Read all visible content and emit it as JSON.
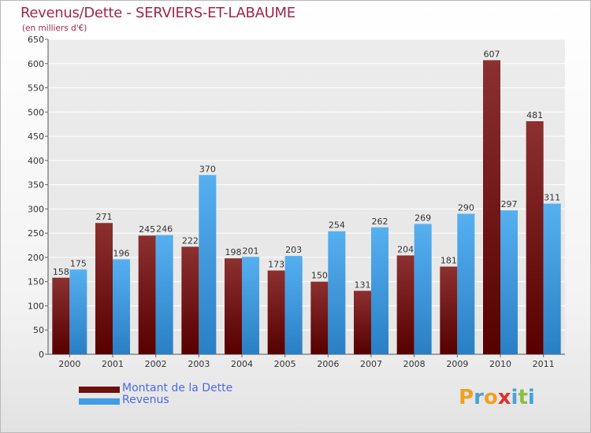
{
  "chart_data": {
    "type": "bar",
    "title": "Revenus/Dette - SERVIERS-ET-LABAUME",
    "subtitle": "(en milliers d'€)",
    "categories": [
      "2000",
      "2001",
      "2002",
      "2003",
      "2004",
      "2005",
      "2006",
      "2007",
      "2008",
      "2009",
      "2010",
      "2011"
    ],
    "series": [
      {
        "name": "Montant de la Dette",
        "color": "#6e0f0f",
        "values": [
          158,
          271,
          245,
          222,
          198,
          173,
          150,
          131,
          204,
          181,
          607,
          481
        ]
      },
      {
        "name": "Revenus",
        "color": "#3f9ee6",
        "values": [
          175,
          196,
          246,
          370,
          201,
          203,
          254,
          262,
          269,
          290,
          297,
          311
        ]
      }
    ],
    "ylim": [
      0,
      650
    ],
    "yticks": [
      0,
      50,
      100,
      150,
      200,
      250,
      300,
      350,
      400,
      450,
      500,
      550,
      600,
      650
    ],
    "grid": true,
    "legend_position": "bottom-left"
  },
  "logo": {
    "text": "Proxiti",
    "letters": [
      {
        "ch": "P",
        "color": "#f0a020"
      },
      {
        "ch": "r",
        "color": "#4aa0dc"
      },
      {
        "ch": "o",
        "color": "#f0a020"
      },
      {
        "ch": "x",
        "color": "#e03030"
      },
      {
        "ch": "i",
        "color": "#4aa0dc"
      },
      {
        "ch": "t",
        "color": "#8cc040"
      },
      {
        "ch": "i",
        "color": "#4aa0dc"
      }
    ]
  }
}
